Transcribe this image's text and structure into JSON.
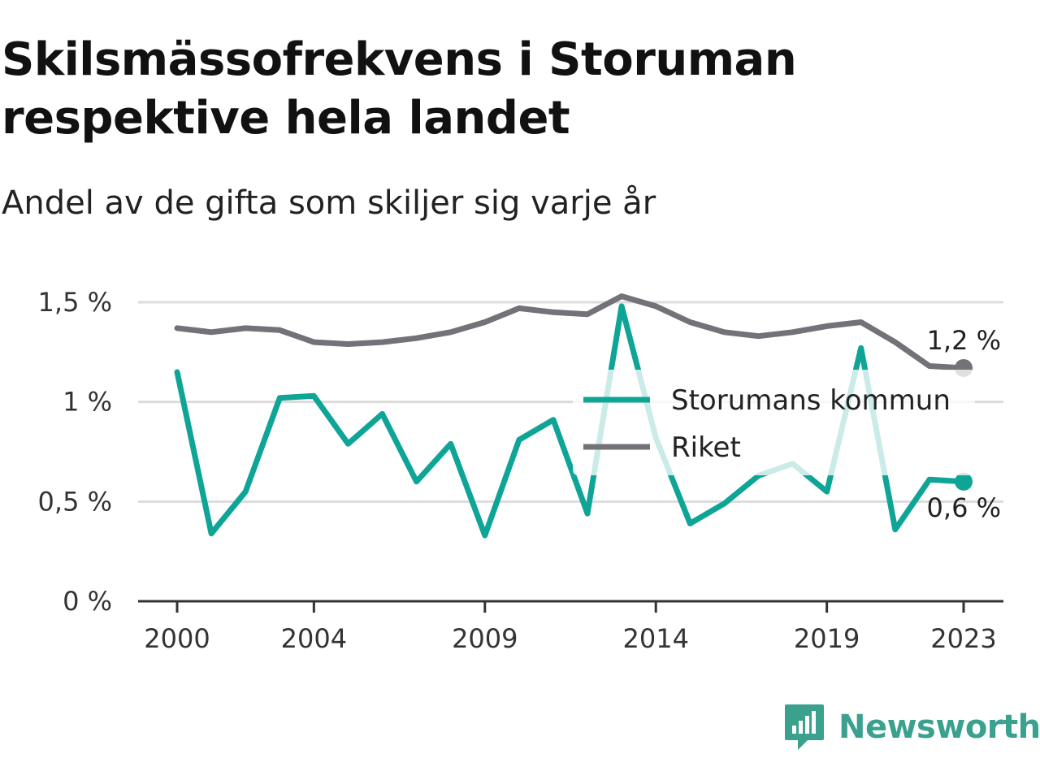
{
  "title": "Skilsmässofrekvens i Storuman respektive hela landet",
  "subtitle": "Andel av de gifta som skiljer sig varje år",
  "brand": {
    "name": "Newsworthy",
    "logo_icon": "newsworthy-logo-icon",
    "color": "#3aa18f"
  },
  "chart_data": {
    "type": "line",
    "x": [
      2000,
      2001,
      2002,
      2003,
      2004,
      2005,
      2006,
      2007,
      2008,
      2009,
      2010,
      2011,
      2012,
      2013,
      2014,
      2015,
      2016,
      2017,
      2018,
      2019,
      2020,
      2021,
      2022,
      2023
    ],
    "x_ticks": [
      2000,
      2004,
      2009,
      2014,
      2019,
      2023
    ],
    "x_tick_labels": [
      "2000",
      "2004",
      "2009",
      "2014",
      "2019",
      "2023"
    ],
    "ylim": [
      0,
      1.5
    ],
    "y_ticks": [
      0,
      0.5,
      1,
      1.5
    ],
    "y_tick_labels": [
      "0 %",
      "0,5 %",
      "1 %",
      "1,5 %"
    ],
    "grid": true,
    "legend_position": "center-right",
    "series": [
      {
        "name": "Storumans kommun",
        "color": "#0ea597",
        "values": [
          1.15,
          0.34,
          0.55,
          1.02,
          1.03,
          0.79,
          0.94,
          0.6,
          0.79,
          0.33,
          0.81,
          0.91,
          0.44,
          1.48,
          0.82,
          0.39,
          0.49,
          0.63,
          0.69,
          0.55,
          1.27,
          0.36,
          0.61,
          0.6
        ],
        "end_label": "0,6 %"
      },
      {
        "name": "Riket",
        "color": "#737278",
        "values": [
          1.37,
          1.35,
          1.37,
          1.36,
          1.3,
          1.29,
          1.3,
          1.32,
          1.35,
          1.4,
          1.47,
          1.45,
          1.44,
          1.53,
          1.48,
          1.4,
          1.35,
          1.33,
          1.35,
          1.38,
          1.4,
          1.3,
          1.18,
          1.17
        ],
        "end_label": "1,2 %"
      }
    ]
  }
}
